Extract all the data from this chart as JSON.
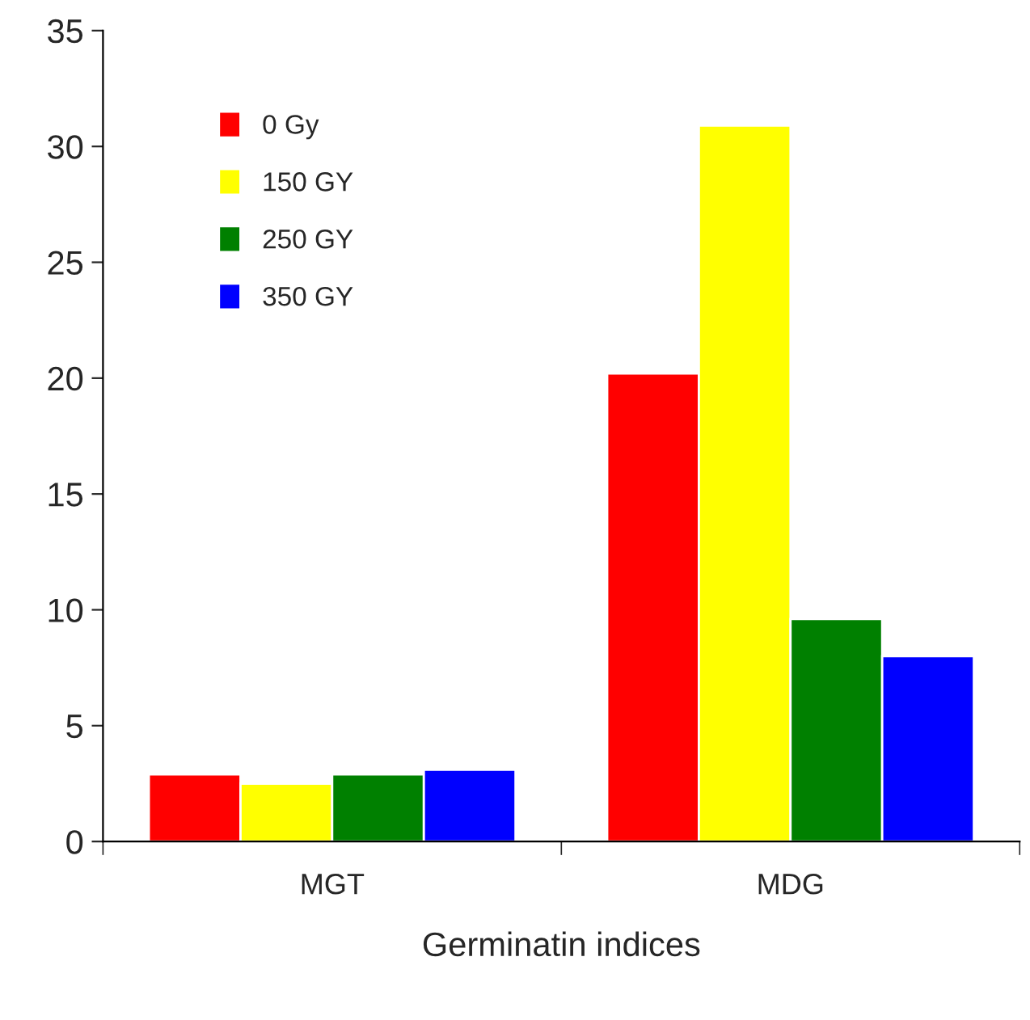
{
  "chart_data": {
    "type": "bar",
    "xlabel": "Germinatin indices",
    "categories": [
      "MGT",
      "MDG"
    ],
    "series": [
      {
        "name": "0 Gy",
        "color": "#ff0000",
        "values": [
          2.9,
          20.2
        ]
      },
      {
        "name": "150 GY",
        "color": "#ffff00",
        "values": [
          2.5,
          30.9
        ]
      },
      {
        "name": "250 GY",
        "color": "#008000",
        "values": [
          2.9,
          9.6
        ]
      },
      {
        "name": "350 GY",
        "color": "#0000ff",
        "values": [
          3.1,
          8.0
        ]
      }
    ],
    "ylim": [
      0,
      35
    ],
    "yticks": [
      0,
      5,
      10,
      15,
      20,
      25,
      30,
      35
    ],
    "grid": false,
    "legend": "top left"
  }
}
